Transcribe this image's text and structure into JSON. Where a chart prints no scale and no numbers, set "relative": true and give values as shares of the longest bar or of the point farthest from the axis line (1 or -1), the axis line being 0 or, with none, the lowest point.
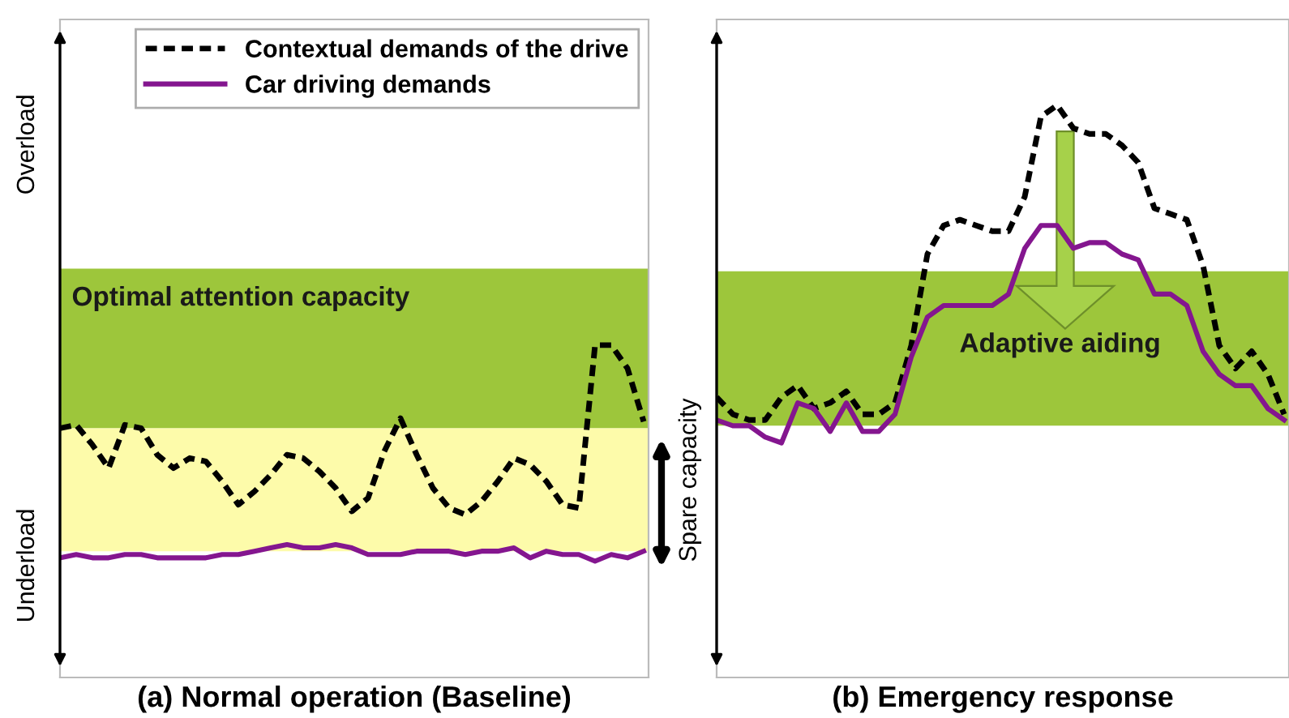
{
  "chart_data": [
    {
      "type": "line",
      "title": "(a) Normal operation (Baseline)",
      "relative": true,
      "legend": "top right",
      "categories": [
        null,
        null,
        null,
        null,
        null,
        null,
        null,
        null,
        null,
        null,
        null,
        null,
        null,
        null,
        null,
        null,
        null,
        null,
        null,
        null,
        null,
        null,
        null,
        null,
        null,
        null,
        null,
        null,
        null,
        null,
        null,
        null,
        null,
        null,
        null,
        null,
        null
      ],
      "series": [
        {
          "name": "Contextual demands of the drive",
          "color": "#000000",
          "line_style": "dashed",
          "values": [
            0.75,
            0.76,
            0.7,
            0.63,
            0.76,
            0.75,
            0.67,
            0.63,
            0.66,
            0.65,
            0.59,
            0.52,
            0.56,
            0.61,
            0.67,
            0.66,
            0.62,
            0.57,
            0.5,
            0.54,
            0.68,
            0.78,
            0.67,
            0.57,
            0.51,
            0.49,
            0.53,
            0.59,
            0.66,
            0.64,
            0.59,
            0.52,
            0.51,
            1.0,
            1.0,
            0.93,
            0.77
          ]
        },
        {
          "name": "Car driving demands",
          "color": "#84168f",
          "line_style": "solid",
          "values": [
            0.36,
            0.37,
            0.36,
            0.36,
            0.37,
            0.37,
            0.36,
            0.36,
            0.36,
            0.36,
            0.37,
            0.37,
            0.38,
            0.39,
            0.4,
            0.39,
            0.39,
            0.4,
            0.39,
            0.37,
            0.37,
            0.37,
            0.38,
            0.38,
            0.38,
            0.37,
            0.38,
            0.38,
            0.39,
            0.36,
            0.38,
            0.37,
            0.37,
            0.35,
            0.37,
            0.36,
            0.38
          ]
        }
      ],
      "bands": [
        {
          "axis": "y",
          "from": 0.75,
          "to": 1.23,
          "label": "Optimal attention capacity",
          "color": "#9dc63b"
        },
        {
          "axis": "y",
          "from": 0.38,
          "to": 0.75,
          "label": null,
          "color": "#fdfbaa"
        }
      ],
      "annotations": [
        "Overload",
        "Underload",
        "Spare capacity"
      ]
    },
    {
      "type": "line",
      "title": "(b) Emergency response",
      "relative": true,
      "categories": [
        null,
        null,
        null,
        null,
        null,
        null,
        null,
        null,
        null,
        null,
        null,
        null,
        null,
        null,
        null,
        null,
        null,
        null,
        null,
        null,
        null,
        null,
        null,
        null,
        null,
        null,
        null,
        null,
        null,
        null,
        null,
        null,
        null,
        null,
        null,
        null
      ],
      "series": [
        {
          "color": "#000000",
          "line_style": "dashed",
          "values": [
            0.49,
            0.46,
            0.45,
            0.45,
            0.49,
            0.51,
            0.47,
            0.48,
            0.5,
            0.46,
            0.46,
            0.48,
            0.58,
            0.74,
            0.79,
            0.8,
            0.79,
            0.78,
            0.78,
            0.84,
            0.98,
            1.0,
            0.96,
            0.95,
            0.95,
            0.93,
            0.9,
            0.82,
            0.81,
            0.8,
            0.72,
            0.58,
            0.54,
            0.57,
            0.53,
            0.46
          ]
        },
        {
          "color": "#84168f",
          "line_style": "solid",
          "values": [
            0.45,
            0.44,
            0.44,
            0.42,
            0.41,
            0.48,
            0.47,
            0.43,
            0.48,
            0.43,
            0.43,
            0.46,
            0.56,
            0.63,
            0.65,
            0.65,
            0.65,
            0.65,
            0.67,
            0.75,
            0.79,
            0.79,
            0.75,
            0.76,
            0.76,
            0.74,
            0.73,
            0.67,
            0.67,
            0.65,
            0.57,
            0.53,
            0.51,
            0.51,
            0.47,
            0.45
          ]
        }
      ],
      "bands": [
        {
          "axis": "y",
          "from": 0.44,
          "to": 0.71,
          "label": null,
          "color": "#9dc63b"
        }
      ],
      "annotations": [
        "Adaptive aiding"
      ]
    }
  ]
}
